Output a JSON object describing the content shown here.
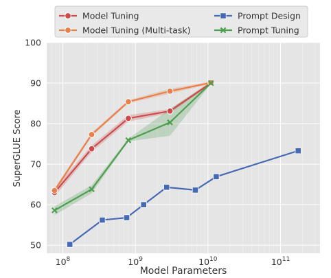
{
  "chart_data": {
    "type": "line",
    "xlabel": "Model Parameters",
    "ylabel": "SuperGLUE Score",
    "x_scale": "log",
    "xlim": [
      60000000,
      350000000000
    ],
    "ylim": [
      48,
      100
    ],
    "x_ticks": [
      {
        "value": 100000000,
        "base": "10",
        "exp": "8"
      },
      {
        "value": 1000000000,
        "base": "10",
        "exp": "9"
      },
      {
        "value": 10000000000,
        "base": "10",
        "exp": "10"
      },
      {
        "value": 100000000000,
        "base": "10",
        "exp": "11"
      }
    ],
    "y_ticks": [
      {
        "value": 50,
        "label": "50"
      },
      {
        "value": 60,
        "label": "60"
      },
      {
        "value": 70,
        "label": "70"
      },
      {
        "value": 80,
        "label": "80"
      },
      {
        "value": 90,
        "label": "90"
      },
      {
        "value": 100,
        "label": "100"
      }
    ],
    "grid": true,
    "legend_position": "top",
    "series": [
      {
        "name": "Model Tuning",
        "color": "#cd4a4a",
        "marker": "circle",
        "points": [
          {
            "x": 77000000,
            "y": 63.0
          },
          {
            "x": 250000000,
            "y": 73.8
          },
          {
            "x": 800000000,
            "y": 81.3
          },
          {
            "x": 3000000000,
            "y": 83.1
          },
          {
            "x": 11000000000,
            "y": 90.0
          }
        ],
        "band_low": [
          62.0,
          73.0,
          80.5,
          82.6,
          89.6
        ],
        "band_high": [
          64.0,
          74.6,
          82.1,
          83.6,
          90.4
        ]
      },
      {
        "name": "Model Tuning (Multi-task)",
        "color": "#e8804b",
        "marker": "circle",
        "points": [
          {
            "x": 77000000,
            "y": 63.5
          },
          {
            "x": 250000000,
            "y": 77.3
          },
          {
            "x": 800000000,
            "y": 85.4
          },
          {
            "x": 3000000000,
            "y": 88.0
          },
          {
            "x": 11000000000,
            "y": 90.1
          }
        ],
        "band_low": [
          63.0,
          76.8,
          85.0,
          87.4,
          89.8
        ],
        "band_high": [
          64.0,
          77.8,
          85.8,
          88.6,
          90.4
        ]
      },
      {
        "name": "Prompt Design",
        "color": "#4669b3",
        "marker": "square",
        "points": [
          {
            "x": 125000000,
            "y": 50.2
          },
          {
            "x": 350000000,
            "y": 56.2
          },
          {
            "x": 760000000,
            "y": 56.8
          },
          {
            "x": 1300000000,
            "y": 60.0
          },
          {
            "x": 2700000000,
            "y": 64.3
          },
          {
            "x": 6700000000,
            "y": 63.6
          },
          {
            "x": 13000000000,
            "y": 66.9
          },
          {
            "x": 175000000000,
            "y": 73.3
          }
        ]
      },
      {
        "name": "Prompt Tuning",
        "color": "#4d9e4f",
        "marker": "x",
        "points": [
          {
            "x": 77000000,
            "y": 58.6
          },
          {
            "x": 250000000,
            "y": 63.8
          },
          {
            "x": 800000000,
            "y": 75.9
          },
          {
            "x": 3000000000,
            "y": 80.3
          },
          {
            "x": 11000000000,
            "y": 90.0
          }
        ],
        "band_low": [
          57.4,
          62.8,
          75.6,
          77.0,
          89.8
        ],
        "band_high": [
          59.6,
          64.8,
          76.3,
          83.6,
          90.2
        ]
      }
    ]
  }
}
